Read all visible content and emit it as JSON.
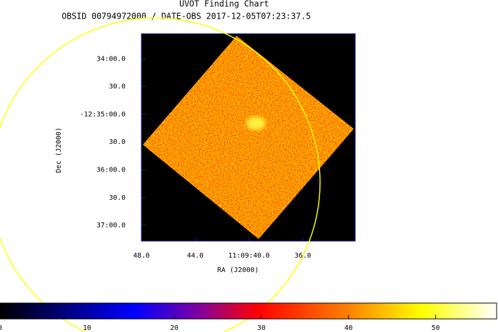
{
  "chart_data": {
    "type": "image",
    "title": "UVOT Finding Chart",
    "subtitle": "OBSID 00794972000 / DATE-OBS 2017-12-05T07:23:37.5",
    "xlabel": "RA (J2000)",
    "ylabel": "Dec (J2000)",
    "xlim": [
      48.0,
      32.1
    ],
    "xticks": [
      {
        "value": 48,
        "label": "48.0"
      },
      {
        "value": 44,
        "label": "44.0"
      },
      {
        "value": 40,
        "label": "11:09:40.0"
      },
      {
        "value": 36,
        "label": "36.0"
      }
    ],
    "ylim": [
      2237,
      2013
    ],
    "yticks": [
      {
        "value": 2040,
        "label": "34:00.0"
      },
      {
        "value": 2070,
        "label": "30.0"
      },
      {
        "value": 2100,
        "label": "-12:35:00.0"
      },
      {
        "value": 2130,
        "label": "30.0"
      },
      {
        "value": 2160,
        "label": "36:00.0"
      },
      {
        "value": 2190,
        "label": "30.0"
      },
      {
        "value": 2220,
        "label": "37:00.0"
      }
    ],
    "colorbar": {
      "lim": [
        0,
        57
      ],
      "ticks": [
        0,
        10,
        20,
        30,
        40,
        50
      ]
    }
  }
}
